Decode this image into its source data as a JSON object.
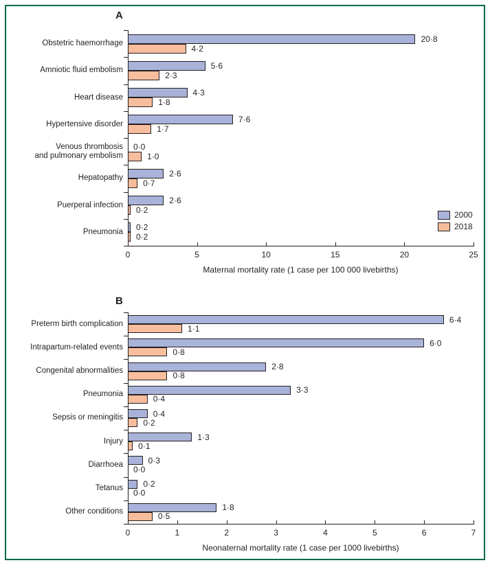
{
  "figure": {
    "border_color": "#006a45",
    "background_color": "#ffffff",
    "text_color": "#231f20"
  },
  "legend": {
    "position": "right of panel A, above x-axis",
    "items": [
      {
        "label": "2000",
        "color": "#a9b3d9"
      },
      {
        "label": "2018",
        "color": "#f8bd9d"
      }
    ]
  },
  "chart_data": [
    {
      "type": "bar",
      "orientation": "horizontal",
      "panel_label": "A",
      "xlabel": "Maternal mortality rate (1 case per 100 000 livebirths)",
      "xlim": [
        0,
        25
      ],
      "xticks": [
        0,
        5,
        10,
        15,
        20,
        25
      ],
      "grid": false,
      "decimal_separator": "·",
      "categories": [
        "Obstetric haemorrhage",
        "Amniotic fluid embolism",
        "Heart disease",
        "Hypertensive disorder",
        "Venous thrombosis\nand pulmonary embolism",
        "Hepatopathy",
        "Puerperal infection",
        "Pneumonia"
      ],
      "series": [
        {
          "name": "2000",
          "color": "#a9b3d9",
          "values": [
            20.8,
            5.6,
            4.3,
            7.6,
            0.0,
            2.6,
            2.6,
            0.2
          ],
          "labels": [
            "20·8",
            "5·6",
            "4·3",
            "7·6",
            "0·0",
            "2·6",
            "2·6",
            "0·2"
          ]
        },
        {
          "name": "2018",
          "color": "#f8bd9d",
          "values": [
            4.2,
            2.3,
            1.8,
            1.7,
            1.0,
            0.7,
            0.2,
            0.2
          ],
          "labels": [
            "4·2",
            "2·3",
            "1·8",
            "1·7",
            "1·0",
            "0·7",
            "0·2",
            "0·2"
          ]
        }
      ],
      "legend_visible": true
    },
    {
      "type": "bar",
      "orientation": "horizontal",
      "panel_label": "B",
      "xlabel": "Neonaternal mortality rate (1 case per 1000 livebirths)",
      "xlim": [
        0,
        7
      ],
      "xticks": [
        0,
        1,
        2,
        3,
        4,
        5,
        6,
        7
      ],
      "grid": false,
      "decimal_separator": "·",
      "categories": [
        "Preterm birth complication",
        "Intrapartum-related events",
        "Congenital abnormalities",
        "Pneumonia",
        "Sepsis or meningitis",
        "Injury",
        "Diarrhoea",
        "Tetanus",
        "Other conditions"
      ],
      "series": [
        {
          "name": "2000",
          "color": "#a9b3d9",
          "values": [
            6.4,
            6.0,
            2.8,
            3.3,
            0.4,
            1.3,
            0.3,
            0.2,
            1.8
          ],
          "labels": [
            "6·4",
            "6·0",
            "2·8",
            "3·3",
            "0·4",
            "1·3",
            "0·3",
            "0·2",
            "1·8"
          ]
        },
        {
          "name": "2018",
          "color": "#f8bd9d",
          "values": [
            1.1,
            0.8,
            0.8,
            0.4,
            0.2,
            0.1,
            0.0,
            0.0,
            0.5
          ],
          "labels": [
            "1·1",
            "0·8",
            "0·8",
            "0·4",
            "0·2",
            "0·1",
            "0·0",
            "0·0",
            "0·5"
          ]
        }
      ],
      "legend_visible": false
    }
  ]
}
